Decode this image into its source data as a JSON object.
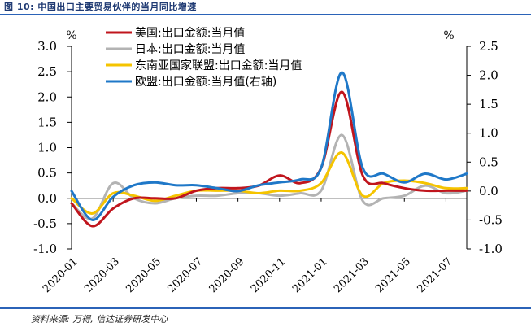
{
  "figure": {
    "title": "图 10:  中国出口主要贸易伙伴的当月同比增速",
    "source": "资料来源: 万得, 信达证券研发中心"
  },
  "colors": {
    "frame": "#2b63b8",
    "us": "#c0151d",
    "japan": "#b3b3b3",
    "asean": "#f5c400",
    "eu": "#1f78c8"
  },
  "chart_data": {
    "type": "line",
    "ylabel_left": "%",
    "ylabel_right": "%",
    "ylim_left": [
      -1.0,
      3.0
    ],
    "ylim_right": [
      -1.0,
      2.5
    ],
    "yticks_left": [
      "3.0",
      "2.5",
      "2.0",
      "1.5",
      "1.0",
      "0.5",
      "0.0",
      "-0.5",
      "-1.0"
    ],
    "yticks_right": [
      "2.5",
      "2.0",
      "1.5",
      "1.0",
      "0.5",
      "0.0",
      "-0.5",
      "-1.0"
    ],
    "x_tick_labels": [
      "2020-01",
      "2020-03",
      "2020-05",
      "2020-07",
      "2020-09",
      "2020-11",
      "2021-01",
      "2021-03",
      "2021-05",
      "2021-07"
    ],
    "x": [
      "2020-01",
      "2020-02",
      "2020-03",
      "2020-04",
      "2020-05",
      "2020-06",
      "2020-07",
      "2020-08",
      "2020-09",
      "2020-10",
      "2020-11",
      "2020-12",
      "2021-01",
      "2021-02",
      "2021-03",
      "2021-04",
      "2021-05",
      "2021-06",
      "2021-07",
      "2021-08"
    ],
    "legend_position": "top-center",
    "series": [
      {
        "name": "美国:出口金额:当月值",
        "color_key": "us",
        "axis": "left",
        "values": [
          -0.1,
          -0.55,
          -0.2,
          0.0,
          0.0,
          0.0,
          0.15,
          0.2,
          0.2,
          0.25,
          0.45,
          0.3,
          0.6,
          2.1,
          0.45,
          0.3,
          0.2,
          0.15,
          0.15,
          0.15
        ]
      },
      {
        "name": "日本:出口金额:当月值",
        "color_key": "japan",
        "axis": "left",
        "values": [
          -0.1,
          -0.4,
          0.3,
          0.0,
          -0.1,
          0.0,
          0.05,
          0.05,
          0.1,
          0.1,
          0.05,
          0.1,
          0.15,
          1.25,
          -0.05,
          0.0,
          0.05,
          0.25,
          0.1,
          0.15
        ]
      },
      {
        "name": "东南亚国家联盟:出口金额:当月值",
        "color_key": "asean",
        "axis": "left",
        "values": [
          0.0,
          -0.3,
          0.1,
          0.05,
          -0.05,
          0.05,
          0.15,
          0.15,
          0.15,
          0.1,
          0.15,
          0.15,
          0.3,
          0.9,
          0.05,
          0.3,
          0.35,
          0.3,
          0.2,
          0.2
        ]
      },
      {
        "name": "欧盟:出口金额:当月值(右轴)",
        "color_key": "eu",
        "axis": "right",
        "values": [
          0.0,
          -0.5,
          -0.1,
          0.1,
          0.15,
          0.1,
          0.1,
          0.05,
          0.0,
          0.1,
          0.15,
          0.2,
          0.4,
          2.05,
          0.4,
          0.3,
          0.15,
          0.3,
          0.2,
          0.3
        ]
      }
    ]
  }
}
